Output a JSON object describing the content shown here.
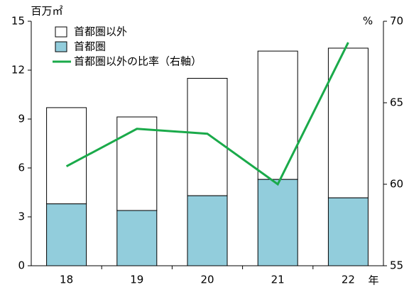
{
  "chart_data": {
    "type": "bar",
    "ylabel": "百万㎡",
    "y2label": "%",
    "xlabel": "年",
    "categories": [
      "18",
      "19",
      "20",
      "21",
      "22"
    ],
    "series": [
      {
        "name": "首都圏以外",
        "color": "#ffffff",
        "values": [
          5.9,
          5.74,
          7.2,
          7.87,
          9.18
        ]
      },
      {
        "name": "首都圏",
        "color": "#92cddc",
        "values": [
          3.8,
          3.39,
          4.3,
          5.3,
          4.17
        ]
      },
      {
        "name": "首都圏以外の比率（右軸）",
        "color": "#1aaa4a",
        "type": "line",
        "axis": "y2",
        "values": [
          61.1,
          63.4,
          63.1,
          60.0,
          68.7
        ]
      }
    ],
    "stacked": true,
    "ylim": [
      0,
      15
    ],
    "yticks": [
      0,
      3,
      6,
      9,
      12,
      15
    ],
    "y2lim": [
      55,
      70
    ],
    "y2ticks": [
      55,
      60,
      65,
      70
    ],
    "legend": "top-left"
  }
}
